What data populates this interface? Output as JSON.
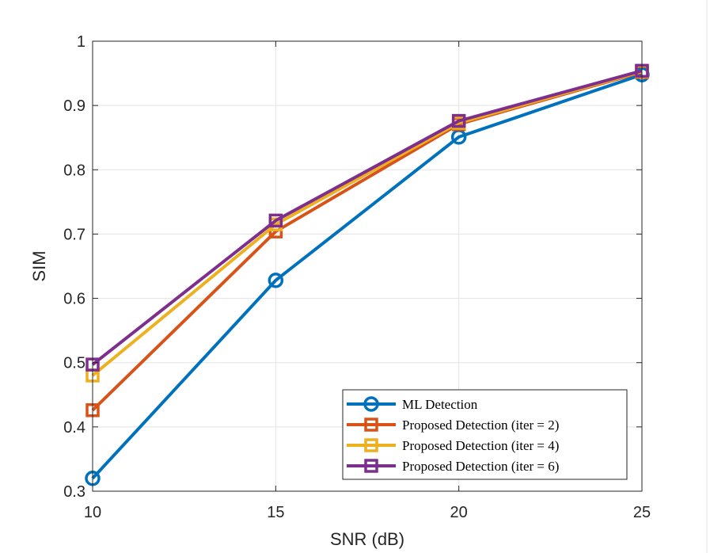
{
  "chart_data": {
    "type": "line",
    "title": "",
    "xlabel": "SNR (dB)",
    "ylabel": "SIM",
    "x": [
      10,
      15,
      20,
      25
    ],
    "xlim": [
      10,
      25
    ],
    "ylim": [
      0.3,
      1.0
    ],
    "xticks": [
      10,
      15,
      20,
      25
    ],
    "xtick_labels": [
      "10",
      "15",
      "20",
      "25"
    ],
    "yticks": [
      0.3,
      0.4,
      0.5,
      0.6,
      0.7,
      0.8,
      0.9,
      1.0
    ],
    "ytick_labels": [
      "0.3",
      "0.4",
      "0.5",
      "0.6",
      "0.7",
      "0.8",
      "0.9",
      "1"
    ],
    "grid": true,
    "legend_position": "bottom-right",
    "series": [
      {
        "name": "ML Detection",
        "marker": "circle",
        "color": "#0072BD",
        "values": [
          0.32,
          0.628,
          0.851,
          0.948
        ]
      },
      {
        "name": "Proposed Detection (iter = 2)",
        "marker": "square",
        "color": "#D95319",
        "values": [
          0.426,
          0.704,
          0.871,
          0.952
        ]
      },
      {
        "name": "Proposed Detection (iter = 4)",
        "marker": "square",
        "color": "#EDB120",
        "values": [
          0.48,
          0.715,
          0.873,
          0.953
        ]
      },
      {
        "name": "Proposed Detection (iter = 6)",
        "marker": "square",
        "color": "#7E2F8E",
        "values": [
          0.497,
          0.721,
          0.876,
          0.954
        ]
      }
    ]
  }
}
